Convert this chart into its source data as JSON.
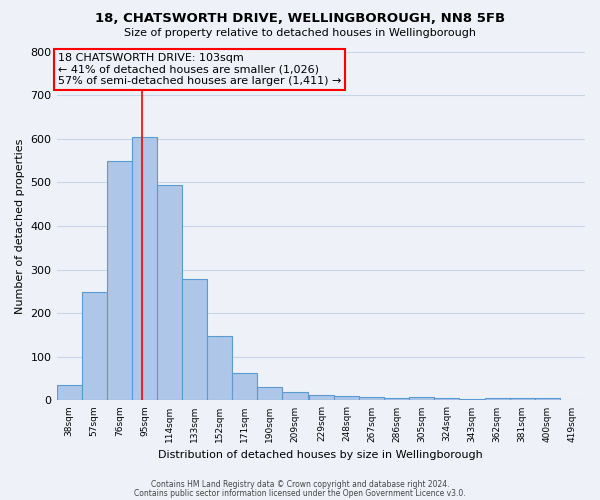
{
  "title1": "18, CHATSWORTH DRIVE, WELLINGBOROUGH, NN8 5FB",
  "title2": "Size of property relative to detached houses in Wellingborough",
  "xlabel": "Distribution of detached houses by size in Wellingborough",
  "ylabel": "Number of detached properties",
  "bar_edges": [
    38,
    57,
    76,
    95,
    114,
    133,
    152,
    171,
    190,
    209,
    229,
    248,
    267,
    286,
    305,
    324,
    343,
    362,
    381,
    400,
    419
  ],
  "bar_heights": [
    35,
    248,
    548,
    605,
    493,
    278,
    148,
    62,
    30,
    20,
    13,
    10,
    8,
    5,
    7,
    5,
    3,
    5,
    5,
    5
  ],
  "bar_color": "#aec6e8",
  "bar_edge_color": "#5b9bd5",
  "bar_linewidth": 0.8,
  "grid_color": "#c8d4e8",
  "bg_color": "#eef2f8",
  "red_line_x": 103,
  "ann_line1": "18 CHATSWORTH DRIVE: 103sqm",
  "ann_line2": "← 41% of detached houses are smaller (1,026)",
  "ann_line3": "57% of semi-detached houses are larger (1,411) →",
  "ylim": [
    0,
    800
  ],
  "yticks": [
    0,
    100,
    200,
    300,
    400,
    500,
    600,
    700,
    800
  ],
  "footer1": "Contains HM Land Registry data © Crown copyright and database right 2024.",
  "footer2": "Contains public sector information licensed under the Open Government Licence v3.0."
}
